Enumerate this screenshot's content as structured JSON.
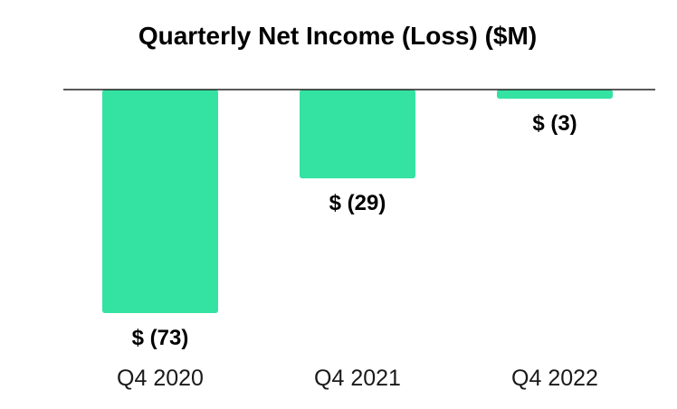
{
  "chart_data": {
    "type": "bar",
    "title": "Quarterly Net Income (Loss) ($M)",
    "categories": [
      "Q4 2020",
      "Q4 2021",
      "Q4 2022"
    ],
    "values": [
      -73,
      -29,
      -3
    ],
    "value_labels": [
      "$ (73)",
      "$ (29)",
      "$ (3)"
    ],
    "xlabel": "",
    "ylabel": "",
    "ylim": [
      -73,
      0
    ],
    "grid": false,
    "legend": "none",
    "colors": {
      "bar": "#34e2a2",
      "baseline": "#222222"
    }
  }
}
